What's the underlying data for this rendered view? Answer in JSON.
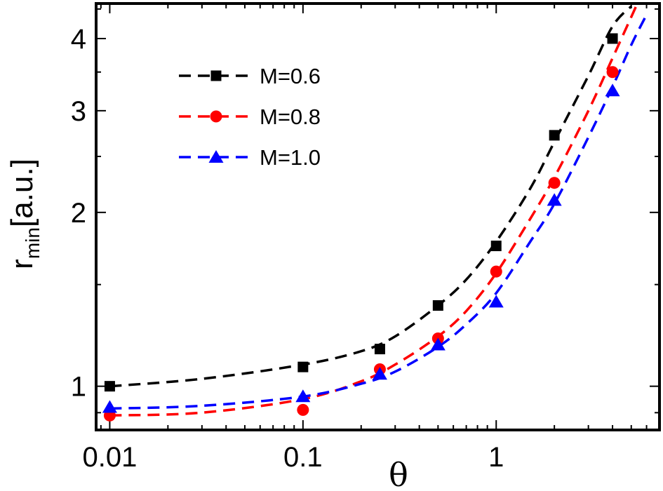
{
  "chart_data": {
    "type": "line",
    "xlabel": "θ",
    "ylabel_main": "r",
    "ylabel_sub": "min",
    "ylabel_unit": "[a.u.]",
    "x_scale": "log",
    "y_scale": "log",
    "xlim": [
      0.0085,
      7.0
    ],
    "ylim": [
      0.84,
      4.6
    ],
    "x_ticks": [
      {
        "value": 0.01,
        "label": "0.01"
      },
      {
        "value": 0.1,
        "label": "0.1"
      },
      {
        "value": 1,
        "label": "1"
      }
    ],
    "y_ticks": [
      {
        "value": 1,
        "label": "1"
      },
      {
        "value": 2,
        "label": "2"
      },
      {
        "value": 3,
        "label": "3"
      },
      {
        "value": 4,
        "label": "4"
      }
    ],
    "grid": false,
    "legend_position": "top-left",
    "series": [
      {
        "name": "M=0.6",
        "color": "#000000",
        "marker": "square",
        "x": [
          0.01,
          0.1,
          0.25,
          0.5,
          1.0,
          2.0,
          4.0
        ],
        "y": [
          1.0,
          1.08,
          1.16,
          1.38,
          1.75,
          2.72,
          4.0
        ],
        "fit_x": [
          0.01,
          0.03,
          0.1,
          0.2,
          0.3,
          0.5,
          0.7,
          1.0,
          1.5,
          2.0,
          3.0,
          4.0,
          5.0
        ],
        "fit_y": [
          1.0,
          1.03,
          1.09,
          1.15,
          1.22,
          1.38,
          1.53,
          1.78,
          2.2,
          2.65,
          3.45,
          4.2,
          4.55
        ]
      },
      {
        "name": "M=0.8",
        "color": "#ff0000",
        "marker": "circle",
        "x": [
          0.01,
          0.1,
          0.25,
          0.5,
          1.0,
          2.0,
          4.0
        ],
        "y": [
          0.89,
          0.91,
          1.07,
          1.21,
          1.58,
          2.25,
          3.5
        ],
        "fit_x": [
          0.01,
          0.03,
          0.1,
          0.2,
          0.3,
          0.5,
          0.7,
          1.0,
          1.5,
          2.0,
          3.0,
          4.0,
          5.3
        ],
        "fit_y": [
          0.89,
          0.9,
          0.95,
          1.02,
          1.09,
          1.22,
          1.35,
          1.57,
          1.95,
          2.3,
          3.0,
          3.7,
          4.55
        ]
      },
      {
        "name": "M=1.0",
        "color": "#0000ff",
        "marker": "triangle",
        "x": [
          0.01,
          0.1,
          0.25,
          0.5,
          1.0,
          2.0,
          4.0
        ],
        "y": [
          0.92,
          0.96,
          1.05,
          1.18,
          1.4,
          2.1,
          3.25
        ],
        "fit_x": [
          0.01,
          0.03,
          0.1,
          0.2,
          0.3,
          0.5,
          0.7,
          1.0,
          1.5,
          2.0,
          3.0,
          4.0,
          5.0,
          6.0
        ],
        "fit_y": [
          0.915,
          0.925,
          0.96,
          1.01,
          1.06,
          1.17,
          1.28,
          1.45,
          1.78,
          2.07,
          2.7,
          3.3,
          3.9,
          4.4
        ]
      }
    ]
  }
}
